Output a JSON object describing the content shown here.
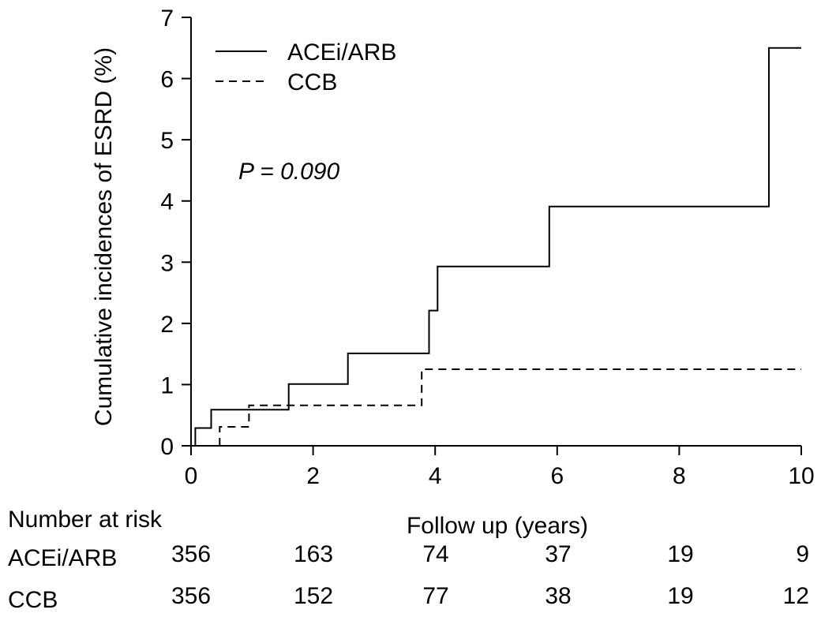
{
  "chart_data": {
    "type": "line",
    "step": true,
    "xlabel": "Follow up (years)",
    "ylabel": "Cumulative incidences of ESRD (%)",
    "xlim": [
      0,
      10
    ],
    "ylim": [
      0,
      7
    ],
    "xticks": [
      0,
      2,
      4,
      6,
      8,
      10
    ],
    "yticks": [
      0,
      1,
      2,
      3,
      4,
      5,
      6,
      7
    ],
    "grid": false,
    "legend_position": "top-left",
    "annotation": {
      "prefix": "P",
      "text": " = 0.090"
    },
    "series": [
      {
        "name": "ACEi/ARB",
        "style": "solid",
        "x": [
          0.07,
          0.07,
          0.33,
          0.33,
          1.6,
          1.6,
          2.57,
          2.57,
          3.9,
          3.9,
          4.04,
          4.04,
          5.87,
          5.87,
          9.47,
          9.47,
          10.0
        ],
        "y": [
          0.0,
          0.29,
          0.29,
          0.59,
          0.59,
          1.01,
          1.01,
          1.51,
          1.51,
          2.21,
          2.21,
          2.93,
          2.93,
          3.91,
          3.91,
          6.5,
          6.5
        ]
      },
      {
        "name": "CCB",
        "style": "dashed",
        "x": [
          0.47,
          0.47,
          0.95,
          0.95,
          3.78,
          3.78,
          10.0
        ],
        "y": [
          0.0,
          0.31,
          0.31,
          0.66,
          0.66,
          1.25,
          1.25
        ]
      }
    ]
  },
  "risk_table": {
    "title": "Number at risk",
    "rows": [
      {
        "label": "ACEi/ARB",
        "values": [
          "356",
          "163",
          "74",
          "37",
          "19",
          "9"
        ]
      },
      {
        "label": "CCB",
        "values": [
          "356",
          "152",
          "77",
          "38",
          "19",
          "12"
        ]
      }
    ]
  }
}
